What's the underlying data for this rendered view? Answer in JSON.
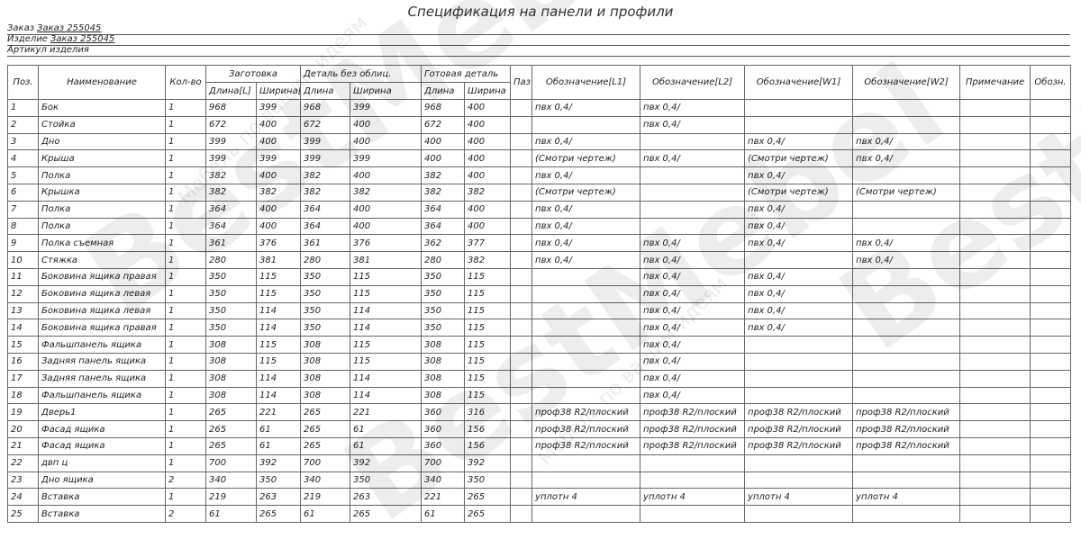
{
  "title": "Спецификация на панели и профили",
  "meta": [
    {
      "label": "Заказ",
      "value": "Заказ 255045"
    },
    {
      "label": "Изделие",
      "value": "Заказ 255045"
    },
    {
      "label": "Артикул изделия",
      "value": ""
    }
  ],
  "watermark": "BestMebel",
  "watermark_sub": "Мебель по вашим идеям",
  "headers": {
    "pos": "Поз.",
    "name": "Наименование",
    "qty": "Кол-во",
    "blank": "Заготовка",
    "raw": "Деталь без облиц.",
    "finished": "Готовая деталь",
    "length_l": "Длина[L]",
    "width_w": "Ширина[W]",
    "length": "Длина",
    "width": "Ширина",
    "groove": "Паз",
    "l1": "Обозначение[L1]",
    "l2": "Обозначение[L2]",
    "w1": "Обозначение[W1]",
    "w2": "Обозначение[W2]",
    "note": "Примечание",
    "designation": "Обозн."
  },
  "rows": [
    [
      "1",
      "Бок",
      "1",
      "968",
      "399",
      "968",
      "399",
      "968",
      "400",
      "",
      "пвх 0,4/",
      "пвх 0,4/",
      "",
      "",
      "",
      ""
    ],
    [
      "2",
      "Стойка",
      "1",
      "672",
      "400",
      "672",
      "400",
      "672",
      "400",
      "",
      "",
      "пвх 0,4/",
      "",
      "",
      "",
      ""
    ],
    [
      "3",
      "Дно",
      "1",
      "399",
      "400",
      "399",
      "400",
      "400",
      "400",
      "",
      "пвх 0,4/",
      "",
      "пвх 0,4/",
      "пвх 0,4/",
      "",
      ""
    ],
    [
      "4",
      "Крыша",
      "1",
      "399",
      "399",
      "399",
      "399",
      "400",
      "400",
      "",
      "(Смотри чертеж)",
      "пвх 0,4/",
      "(Смотри чертеж)",
      "пвх 0,4/",
      "",
      ""
    ],
    [
      "5",
      "Полка",
      "1",
      "382",
      "400",
      "382",
      "400",
      "382",
      "400",
      "",
      "пвх 0,4/",
      "",
      "пвх 0,4/",
      "",
      "",
      ""
    ],
    [
      "6",
      "Крышка",
      "1",
      "382",
      "382",
      "382",
      "382",
      "382",
      "382",
      "",
      "(Смотри чертеж)",
      "",
      "(Смотри чертеж)",
      "(Смотри чертеж)",
      "",
      ""
    ],
    [
      "7",
      "Полка",
      "1",
      "364",
      "400",
      "364",
      "400",
      "364",
      "400",
      "",
      "пвх 0,4/",
      "",
      "пвх 0,4/",
      "",
      "",
      ""
    ],
    [
      "8",
      "Полка",
      "1",
      "364",
      "400",
      "364",
      "400",
      "364",
      "400",
      "",
      "пвх 0,4/",
      "",
      "пвх 0,4/",
      "",
      "",
      ""
    ],
    [
      "9",
      "Полка съемная",
      "1",
      "361",
      "376",
      "361",
      "376",
      "362",
      "377",
      "",
      "пвх 0,4/",
      "пвх 0,4/",
      "пвх 0,4/",
      "пвх 0,4/",
      "",
      ""
    ],
    [
      "10",
      "Стяжка",
      "1",
      "280",
      "381",
      "280",
      "381",
      "280",
      "382",
      "",
      "пвх 0,4/",
      "пвх 0,4/",
      "",
      "пвх 0,4/",
      "",
      ""
    ],
    [
      "11",
      "Боковина ящика правая",
      "1",
      "350",
      "115",
      "350",
      "115",
      "350",
      "115",
      "",
      "",
      "пвх 0,4/",
      "пвх 0,4/",
      "",
      "",
      ""
    ],
    [
      "12",
      "Боковина ящика левая",
      "1",
      "350",
      "115",
      "350",
      "115",
      "350",
      "115",
      "",
      "",
      "пвх 0,4/",
      "пвх 0,4/",
      "",
      "",
      ""
    ],
    [
      "13",
      "Боковина ящика левая",
      "1",
      "350",
      "114",
      "350",
      "114",
      "350",
      "115",
      "",
      "",
      "пвх 0,4/",
      "пвх 0,4/",
      "",
      "",
      ""
    ],
    [
      "14",
      "Боковина ящика правая",
      "1",
      "350",
      "114",
      "350",
      "114",
      "350",
      "115",
      "",
      "",
      "пвх 0,4/",
      "пвх 0,4/",
      "",
      "",
      ""
    ],
    [
      "15",
      "Фальшпанель ящика",
      "1",
      "308",
      "115",
      "308",
      "115",
      "308",
      "115",
      "",
      "",
      "пвх 0,4/",
      "",
      "",
      "",
      ""
    ],
    [
      "16",
      "Задняя панель ящика",
      "1",
      "308",
      "115",
      "308",
      "115",
      "308",
      "115",
      "",
      "",
      "пвх 0,4/",
      "",
      "",
      "",
      ""
    ],
    [
      "17",
      "Задняя панель ящика",
      "1",
      "308",
      "114",
      "308",
      "114",
      "308",
      "115",
      "",
      "",
      "пвх 0,4/",
      "",
      "",
      "",
      ""
    ],
    [
      "18",
      "Фальшпанель ящика",
      "1",
      "308",
      "114",
      "308",
      "114",
      "308",
      "115",
      "",
      "",
      "пвх 0,4/",
      "",
      "",
      "",
      ""
    ],
    [
      "19",
      "Дверь1",
      "1",
      "265",
      "221",
      "265",
      "221",
      "360",
      "316",
      "",
      "проф38 R2/плоский",
      "проф38 R2/плоский",
      "проф38 R2/плоский",
      "проф38 R2/плоский",
      "",
      ""
    ],
    [
      "20",
      "Фасад ящика",
      "1",
      "265",
      "61",
      "265",
      "61",
      "360",
      "156",
      "",
      "проф38 R2/плоский",
      "проф38 R2/плоский",
      "проф38 R2/плоский",
      "проф38 R2/плоский",
      "",
      ""
    ],
    [
      "21",
      "Фасад ящика",
      "1",
      "265",
      "61",
      "265",
      "61",
      "360",
      "156",
      "",
      "проф38 R2/плоский",
      "проф38 R2/плоский",
      "проф38 R2/плоский",
      "проф38 R2/плоский",
      "",
      ""
    ],
    [
      "22",
      "двп ц",
      "1",
      "700",
      "392",
      "700",
      "392",
      "700",
      "392",
      "",
      "",
      "",
      "",
      "",
      "",
      ""
    ],
    [
      "23",
      "Дно ящика",
      "2",
      "340",
      "350",
      "340",
      "350",
      "340",
      "350",
      "",
      "",
      "",
      "",
      "",
      "",
      ""
    ],
    [
      "24",
      "Вставка",
      "1",
      "219",
      "263",
      "219",
      "263",
      "221",
      "265",
      "",
      "уплотн 4",
      "уплотн 4",
      "уплотн 4",
      "уплотн 4",
      "",
      ""
    ],
    [
      "25",
      "Вставка",
      "2",
      "61",
      "265",
      "61",
      "265",
      "61",
      "265",
      "",
      "",
      "",
      "",
      "",
      "",
      ""
    ]
  ]
}
